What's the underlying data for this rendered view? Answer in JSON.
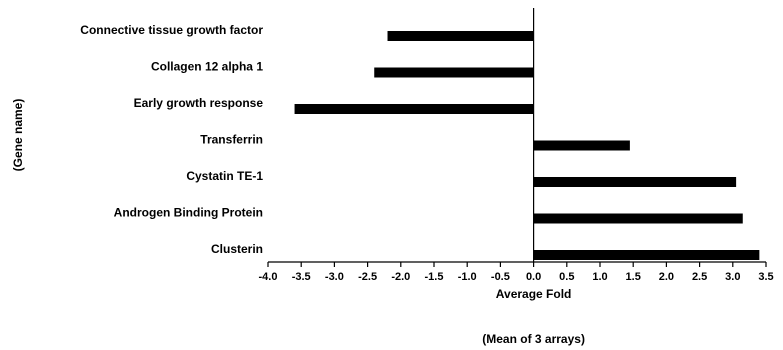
{
  "chart_data": {
    "type": "bar",
    "orientation": "horizontal",
    "categories": [
      "Connective tissue growth factor",
      "Collagen 12 alpha 1",
      "Early growth response ",
      "Transferrin",
      "Cystatin TE-1",
      "Androgen Binding Protein",
      "Clusterin"
    ],
    "values": [
      -2.2,
      -2.4,
      -3.6,
      1.45,
      3.05,
      3.15,
      3.4
    ],
    "xlim": [
      -4.0,
      3.5
    ],
    "xticks": [
      "-4.0",
      "-3.5",
      "-3.0",
      "-2.5",
      "-2.0",
      "-1.5",
      "-1.0",
      "-0.5",
      "0.0",
      "0.5",
      "1.0",
      "1.5",
      "2.0",
      "2.5",
      "3.0",
      "3.5"
    ],
    "xlabel": "Average Fold",
    "xlabel2": "(Mean of 3 arrays)",
    "ylabel": "(Gene name)",
    "bar_color": "#000000",
    "grid": false
  }
}
